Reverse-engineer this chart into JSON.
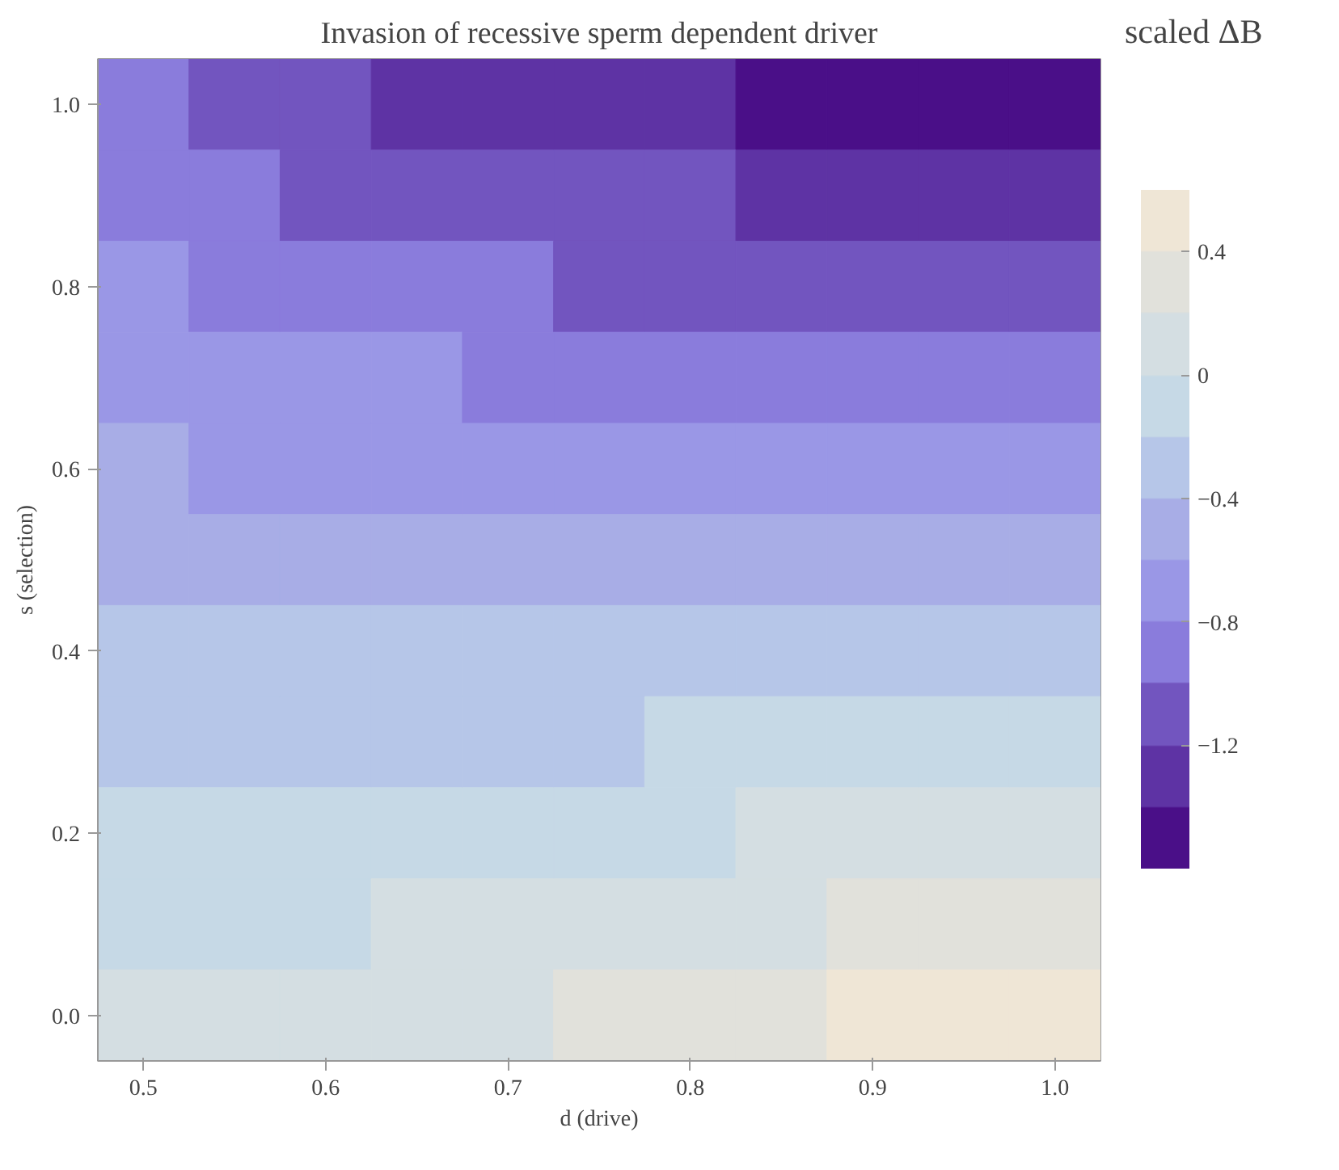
{
  "chart_data": {
    "type": "heatmap",
    "title": "Invasion of recessive sperm dependent driver",
    "xlabel": "d (drive)",
    "ylabel": "s (selection)",
    "clabel": "scaled ΔB",
    "categories": [
      "0.5",
      null,
      "0.6",
      null,
      "0.7",
      null,
      "0.8",
      null,
      "0.9",
      null,
      "1.0"
    ],
    "y_categories": [
      "1.0",
      null,
      "0.8",
      null,
      "0.6",
      null,
      "0.4",
      null,
      "0.2",
      null,
      "0.0"
    ],
    "cells": [
      [
        -1.0,
        -1.08,
        -1.15,
        -1.21,
        -1.27,
        -1.32,
        -1.37,
        -1.41,
        -1.45,
        -1.48,
        -1.5
      ],
      [
        -0.9,
        -0.96,
        -1.02,
        -1.07,
        -1.12,
        -1.16,
        -1.2,
        -1.23,
        -1.26,
        -1.28,
        -1.3
      ],
      [
        -0.8,
        -0.85,
        -0.9,
        -0.94,
        -0.97,
        -1.01,
        -1.03,
        -1.06,
        -1.08,
        -1.09,
        -1.1
      ],
      [
        -0.7,
        -0.74,
        -0.77,
        -0.8,
        -0.83,
        -0.85,
        -0.87,
        -0.88,
        -0.89,
        -0.9,
        -0.9
      ],
      [
        -0.6,
        -0.63,
        -0.65,
        -0.67,
        -0.68,
        -0.69,
        -0.7,
        -0.71,
        -0.71,
        -0.71,
        -0.7
      ],
      [
        -0.5,
        -0.51,
        -0.52,
        -0.53,
        -0.53,
        -0.54,
        -0.53,
        -0.53,
        -0.52,
        -0.51,
        -0.5
      ],
      [
        -0.4,
        -0.4,
        -0.4,
        -0.39,
        -0.39,
        -0.38,
        -0.37,
        -0.35,
        -0.34,
        -0.32,
        -0.3
      ],
      [
        -0.3,
        -0.29,
        -0.27,
        -0.26,
        -0.24,
        -0.22,
        -0.2,
        -0.18,
        -0.15,
        -0.13,
        -0.1
      ],
      [
        -0.2,
        -0.18,
        -0.15,
        -0.12,
        -0.09,
        -0.06,
        -0.03,
        0.0,
        0.03,
        0.07,
        0.1
      ],
      [
        -0.1,
        -0.06,
        -0.02,
        0.01,
        0.05,
        0.09,
        0.13,
        0.17,
        0.22,
        0.26,
        0.3
      ],
      [
        0.0,
        0.05,
        0.1,
        0.15,
        0.2,
        0.25,
        0.3,
        0.35,
        0.4,
        0.45,
        0.5
      ]
    ],
    "clim": [
      -1.6,
      0.6
    ],
    "cticks": [
      {
        "value": -1.2,
        "label": "−1.2"
      },
      {
        "value": -0.8,
        "label": "−0.8"
      },
      {
        "value": -0.4,
        "label": "−0.4"
      },
      0,
      0.4
    ]
  }
}
